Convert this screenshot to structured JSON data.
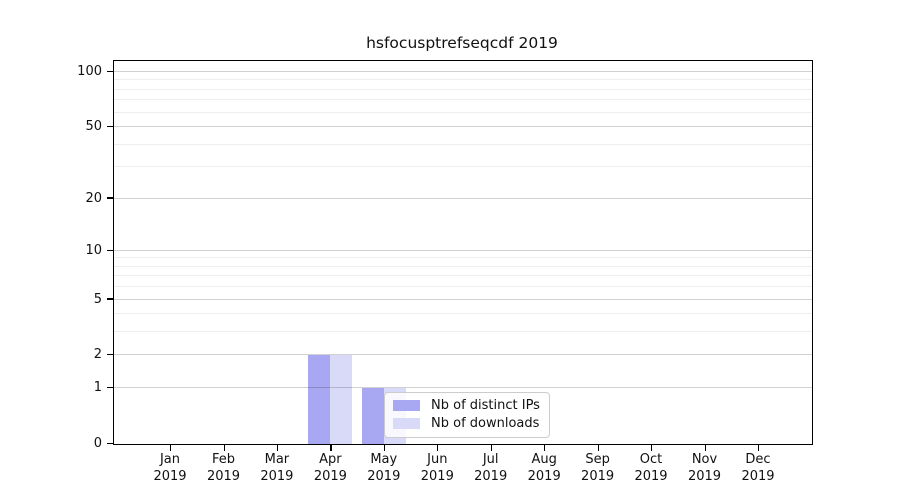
{
  "figure": {
    "title": "hsfocusptrefseqcdf 2019"
  },
  "chart_data": {
    "type": "bar",
    "title": "hsfocusptrefseqcdf 2019",
    "categories": [
      "Jan",
      "Feb",
      "Mar",
      "Apr",
      "May",
      "Jun",
      "Jul",
      "Aug",
      "Sep",
      "Oct",
      "Nov",
      "Dec"
    ],
    "x_year_label": "2019",
    "series": [
      {
        "name": "Nb of distinct IPs",
        "color": "#a8a8f2",
        "values": [
          0,
          0,
          0,
          2,
          1,
          0,
          0,
          0,
          0,
          0,
          0,
          0
        ]
      },
      {
        "name": "Nb of downloads",
        "color": "#d9d9f8",
        "values": [
          0,
          0,
          0,
          2,
          1,
          0,
          0,
          0,
          0,
          0,
          0,
          0
        ]
      }
    ],
    "yscale": "log1p",
    "ylim": [
      0,
      115
    ],
    "yticks_labeled": [
      0,
      1,
      2,
      5,
      10,
      20,
      50,
      100
    ],
    "yticks_minor_grid": [
      3,
      4,
      6,
      7,
      8,
      9,
      30,
      40,
      60,
      70,
      80,
      90
    ],
    "grid": true,
    "grid_above_bars": true,
    "legend_position": "inside-lower-center",
    "colors": {
      "major_grid": "rgba(0,0,0,0.18)",
      "minor_grid": "rgba(0,0,0,0.065)",
      "spine": "#000000",
      "background": "#ffffff"
    }
  }
}
